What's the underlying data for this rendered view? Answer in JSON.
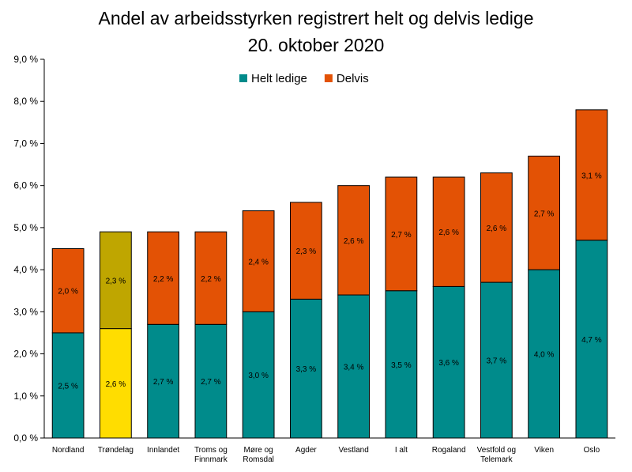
{
  "chart_data": {
    "type": "bar",
    "stacked": true,
    "title": "Andel av arbeidsstyrken registrert helt og delvis ledige",
    "subtitle": "20. oktober 2020",
    "xlabel": "",
    "ylabel": "",
    "ylim": [
      0,
      9
    ],
    "yticks": [
      "0,0 %",
      "1,0 %",
      "2,0 %",
      "3,0 %",
      "4,0 %",
      "5,0 %",
      "6,0 %",
      "7,0 %",
      "8,0 %",
      "9,0 %"
    ],
    "grid": false,
    "legend_position": "top",
    "categories": [
      [
        "Nordland"
      ],
      [
        "Trøndelag"
      ],
      [
        "Innlandet"
      ],
      [
        "Troms og",
        "Finnmark"
      ],
      [
        "Møre og",
        "Romsdal"
      ],
      [
        "Agder"
      ],
      [
        "Vestland"
      ],
      [
        "I alt"
      ],
      [
        "Rogaland"
      ],
      [
        "Vestfold og",
        "Telemark"
      ],
      [
        "Viken"
      ],
      [
        "Oslo"
      ]
    ],
    "series": [
      {
        "name": "Helt ledige",
        "color": "#008B8B",
        "values": [
          2.5,
          2.6,
          2.7,
          2.7,
          3.0,
          3.3,
          3.4,
          3.5,
          3.6,
          3.7,
          4.0,
          4.7
        ],
        "labels": [
          "2,5 %",
          "2,6 %",
          "2,7 %",
          "2,7 %",
          "3,0 %",
          "3,3 %",
          "3,4 %",
          "3,5 %",
          "3,6 %",
          "3,7 %",
          "4,0 %",
          "4,7 %"
        ]
      },
      {
        "name": "Delvis",
        "color": "#E35205",
        "values": [
          2.0,
          2.3,
          2.2,
          2.2,
          2.4,
          2.3,
          2.6,
          2.7,
          2.6,
          2.6,
          2.7,
          3.1
        ],
        "labels": [
          "2,0 %",
          "2,3 %",
          "2,2 %",
          "2,2 %",
          "2,4 %",
          "2,3 %",
          "2,6 %",
          "2,7 %",
          "2,6 %",
          "2,6 %",
          "2,7 %",
          "3,1 %"
        ]
      }
    ],
    "highlight": {
      "category_index": 1,
      "colors": [
        "#FFDD00",
        "#BFA600"
      ]
    }
  }
}
